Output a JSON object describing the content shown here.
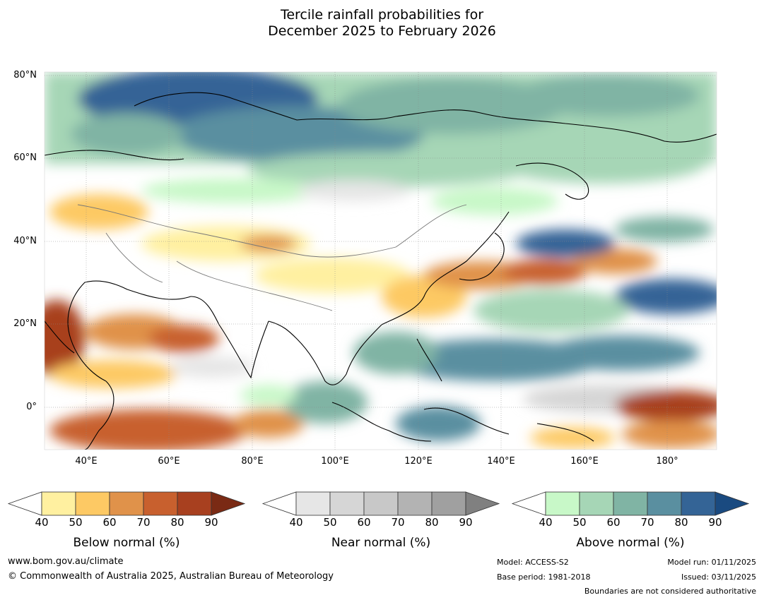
{
  "title": {
    "line1": "Tercile rainfall probabilities for",
    "line2": "December 2025 to February 2026"
  },
  "map": {
    "lat_labels": [
      "80°N",
      "60°N",
      "40°N",
      "20°N",
      "0°"
    ],
    "lon_labels": [
      "40°E",
      "60°E",
      "80°E",
      "100°E",
      "120°E",
      "140°E",
      "160°E",
      "180°"
    ]
  },
  "colorbars": [
    {
      "title": "Below normal (%)",
      "ticks": [
        "40",
        "50",
        "60",
        "70",
        "80",
        "90"
      ],
      "colors": [
        "#fff0a0",
        "#fdc964",
        "#e0924a",
        "#c8602e",
        "#a8401f",
        "#7a2a14"
      ]
    },
    {
      "title": "Near normal (%)",
      "ticks": [
        "40",
        "50",
        "60",
        "70",
        "80",
        "90"
      ],
      "colors": [
        "#e6e6e6",
        "#d6d6d6",
        "#c8c8c8",
        "#b3b3b3",
        "#a0a0a0",
        "#808080"
      ]
    },
    {
      "title": "Above normal (%)",
      "ticks": [
        "40",
        "50",
        "60",
        "70",
        "80",
        "90"
      ],
      "colors": [
        "#c8f8c8",
        "#a6d6b6",
        "#80b4a4",
        "#5a8fa0",
        "#346496",
        "#1a4a80"
      ]
    }
  ],
  "footer": {
    "website": "www.bom.gov.au/climate",
    "copyright": "© Commonwealth of Australia 2025, Australian Bureau of Meteorology",
    "model": "Model: ACCESS-S2",
    "base_period": "Base period: 1981-2018",
    "model_run": "Model run: 01/11/2025",
    "issued": "Issued: 03/11/2025",
    "boundaries": "Boundaries are not considered authoritative"
  }
}
